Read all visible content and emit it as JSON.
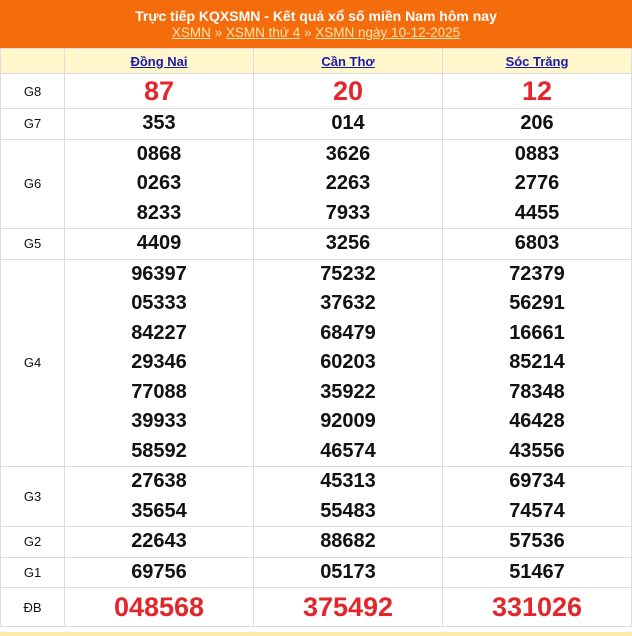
{
  "header": {
    "title": "Trực tiếp KQXSMN - Kết quả xổ số miền Nam hôm nay",
    "breadcrumb": [
      "XSMN",
      "XSMN thứ 4",
      "XSMN ngày 10-12-2025"
    ],
    "separator": "»"
  },
  "colors": {
    "header_bg": "#f56c0c",
    "highlight": "#e3262b",
    "head_row_bg": "#fff6cc"
  },
  "provinces": [
    "Đồng Nai",
    "Cần Thơ",
    "Sóc Trăng"
  ],
  "prizes": [
    {
      "label": "G8",
      "results": [
        [
          "87"
        ],
        [
          "20"
        ],
        [
          "12"
        ]
      ]
    },
    {
      "label": "G7",
      "results": [
        [
          "353"
        ],
        [
          "014"
        ],
        [
          "206"
        ]
      ]
    },
    {
      "label": "G6",
      "results": [
        [
          "0868",
          "0263",
          "8233"
        ],
        [
          "3626",
          "2263",
          "7933"
        ],
        [
          "0883",
          "2776",
          "4455"
        ]
      ]
    },
    {
      "label": "G5",
      "results": [
        [
          "4409"
        ],
        [
          "3256"
        ],
        [
          "6803"
        ]
      ]
    },
    {
      "label": "G4",
      "results": [
        [
          "96397",
          "05333",
          "84227",
          "29346",
          "77088",
          "39933",
          "58592"
        ],
        [
          "75232",
          "37632",
          "68479",
          "60203",
          "35922",
          "92009",
          "46574"
        ],
        [
          "72379",
          "56291",
          "16661",
          "85214",
          "78348",
          "46428",
          "43556"
        ]
      ]
    },
    {
      "label": "G3",
      "results": [
        [
          "27638",
          "35654"
        ],
        [
          "45313",
          "55483"
        ],
        [
          "69734",
          "74574"
        ]
      ]
    },
    {
      "label": "G2",
      "results": [
        [
          "22643"
        ],
        [
          "88682"
        ],
        [
          "57536"
        ]
      ]
    },
    {
      "label": "G1",
      "results": [
        [
          "69756"
        ],
        [
          "05173"
        ],
        [
          "51467"
        ]
      ]
    },
    {
      "label": "ĐB",
      "results": [
        [
          "048568"
        ],
        [
          "375492"
        ],
        [
          "331026"
        ]
      ]
    }
  ]
}
